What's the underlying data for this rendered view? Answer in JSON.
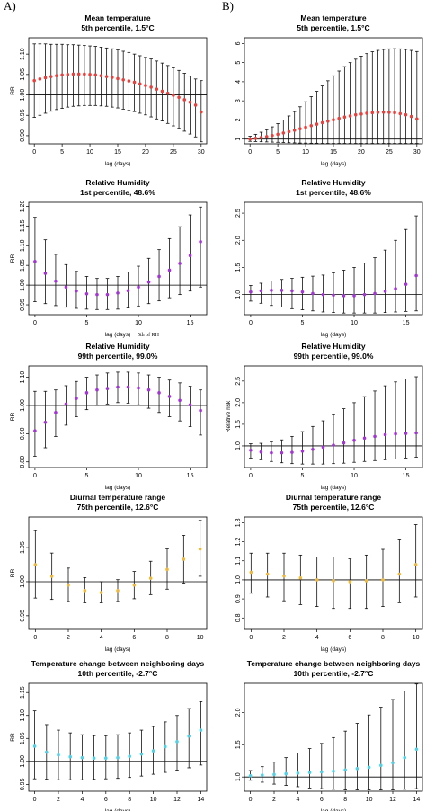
{
  "panel_labels": [
    "A)",
    "B)"
  ],
  "chart_data": [
    {
      "type": "scatter",
      "title": "Mean temperature",
      "subtitle": "5th percentile, 1.5°C",
      "xlabel": "lag (days)",
      "ylabel": "RR",
      "xlim": [
        -1,
        31
      ],
      "ylim": [
        0.88,
        1.14
      ],
      "xticks": [
        0,
        5,
        10,
        15,
        20,
        25,
        30
      ],
      "yticks": [
        0.9,
        0.95,
        1.0,
        1.05,
        1.1
      ],
      "ytick_labels": [
        "0.90",
        "0.95",
        "1.00",
        "1.05",
        "1.10"
      ],
      "reference_line": 1.0,
      "point_color": "#e8413d",
      "x": [
        0,
        1,
        2,
        3,
        4,
        5,
        6,
        7,
        8,
        9,
        10,
        11,
        12,
        13,
        14,
        15,
        16,
        17,
        18,
        19,
        20,
        21,
        22,
        23,
        24,
        25,
        26,
        27,
        28,
        29,
        30
      ],
      "y": [
        1.035,
        1.039,
        1.042,
        1.045,
        1.047,
        1.049,
        1.05,
        1.051,
        1.051,
        1.051,
        1.05,
        1.049,
        1.047,
        1.045,
        1.043,
        1.04,
        1.037,
        1.034,
        1.031,
        1.027,
        1.023,
        1.019,
        1.014,
        1.009,
        1.004,
        0.999,
        0.994,
        0.988,
        0.982,
        0.975,
        0.958
      ],
      "lower": [
        0.945,
        0.95,
        0.955,
        0.96,
        0.964,
        0.967,
        0.97,
        0.972,
        0.973,
        0.974,
        0.974,
        0.974,
        0.973,
        0.972,
        0.97,
        0.968,
        0.965,
        0.962,
        0.959,
        0.955,
        0.951,
        0.946,
        0.941,
        0.936,
        0.93,
        0.924,
        0.918,
        0.911,
        0.904,
        0.897,
        0.885
      ],
      "upper": [
        1.125,
        1.125,
        1.125,
        1.124,
        1.124,
        1.124,
        1.123,
        1.123,
        1.122,
        1.121,
        1.12,
        1.119,
        1.117,
        1.115,
        1.113,
        1.11,
        1.107,
        1.104,
        1.1,
        1.096,
        1.092,
        1.088,
        1.083,
        1.078,
        1.072,
        1.066,
        1.06,
        1.053,
        1.046,
        1.039,
        1.035
      ]
    },
    {
      "type": "scatter",
      "title": "Mean temperature",
      "subtitle": "5th percentile, 1.5°C",
      "xlabel": "lag (days)",
      "ylabel": "",
      "xlim": [
        -1,
        31
      ],
      "ylim": [
        0.75,
        6.3
      ],
      "xticks": [
        0,
        5,
        10,
        15,
        20,
        25,
        30
      ],
      "yticks": [
        1,
        2,
        3,
        4,
        5,
        6
      ],
      "ytick_labels": [
        "1",
        "2",
        "3",
        "4",
        "5",
        "6"
      ],
      "reference_line": 1.0,
      "point_color": "#e8413d",
      "x": [
        0,
        1,
        2,
        3,
        4,
        5,
        6,
        7,
        8,
        9,
        10,
        11,
        12,
        13,
        14,
        15,
        16,
        17,
        18,
        19,
        20,
        21,
        22,
        23,
        24,
        25,
        26,
        27,
        28,
        29,
        30
      ],
      "y": [
        1.0,
        1.04,
        1.08,
        1.13,
        1.19,
        1.25,
        1.32,
        1.39,
        1.46,
        1.54,
        1.62,
        1.7,
        1.78,
        1.86,
        1.94,
        2.01,
        2.08,
        2.15,
        2.21,
        2.27,
        2.31,
        2.35,
        2.38,
        2.4,
        2.41,
        2.4,
        2.38,
        2.33,
        2.27,
        2.18,
        2.05
      ],
      "lower": [
        0.88,
        0.87,
        0.86,
        0.85,
        0.84,
        0.83,
        0.82,
        0.81,
        0.8,
        0.79,
        0.79,
        0.78,
        0.78,
        0.77,
        0.77,
        0.77,
        0.77,
        0.77,
        0.77,
        0.77,
        0.77,
        0.77,
        0.77,
        0.77,
        0.77,
        0.77,
        0.77,
        0.77,
        0.77,
        0.77,
        0.77
      ],
      "upper": [
        1.15,
        1.25,
        1.36,
        1.49,
        1.64,
        1.81,
        2.0,
        2.21,
        2.44,
        2.69,
        2.95,
        3.22,
        3.5,
        3.78,
        4.05,
        4.31,
        4.56,
        4.79,
        5.0,
        5.18,
        5.34,
        5.47,
        5.57,
        5.64,
        5.69,
        5.72,
        5.73,
        5.72,
        5.69,
        5.64,
        5.58
      ]
    },
    {
      "type": "scatter",
      "title": "Relative Humidity",
      "subtitle": "1st percentile, 48.6%",
      "xlabel": "lag (days)",
      "ylabel": "RR",
      "annotation": "5th of RH",
      "xlim": [
        -0.6,
        16.6
      ],
      "ylim": [
        0.925,
        1.21
      ],
      "xticks": [
        0,
        5,
        10,
        15
      ],
      "yticks": [
        0.95,
        1.0,
        1.05,
        1.1,
        1.15,
        1.2
      ],
      "ytick_labels": [
        "0.95",
        "1.00",
        "1.05",
        "1.10",
        "1.15",
        "1.20"
      ],
      "reference_line": 1.0,
      "point_color": "#a335d6",
      "x": [
        0,
        1,
        2,
        3,
        4,
        5,
        6,
        7,
        8,
        9,
        10,
        11,
        12,
        13,
        14,
        15,
        16
      ],
      "y": [
        1.06,
        1.03,
        1.01,
        0.995,
        0.985,
        0.978,
        0.976,
        0.976,
        0.98,
        0.986,
        0.995,
        1.008,
        1.022,
        1.038,
        1.055,
        1.075,
        1.11
      ],
      "lower": [
        0.958,
        0.953,
        0.948,
        0.944,
        0.941,
        0.939,
        0.938,
        0.938,
        0.939,
        0.942,
        0.947,
        0.953,
        0.96,
        0.968,
        0.976,
        0.985,
        0.995
      ],
      "upper": [
        1.172,
        1.115,
        1.078,
        1.052,
        1.035,
        1.022,
        1.017,
        1.017,
        1.022,
        1.033,
        1.048,
        1.068,
        1.09,
        1.118,
        1.148,
        1.178,
        1.198
      ]
    },
    {
      "type": "scatter",
      "title": "Relative Humidity",
      "subtitle": "1st percentile, 48.6%",
      "xlabel": "lag (days)",
      "ylabel": "",
      "xlim": [
        -0.6,
        16.6
      ],
      "ylim": [
        0.63,
        2.7
      ],
      "xticks": [
        0,
        5,
        10,
        15
      ],
      "yticks": [
        1.0,
        1.5,
        2.0,
        2.5
      ],
      "ytick_labels": [
        "1.0",
        "1.5",
        "2.0",
        "2.5"
      ],
      "reference_line": 1.0,
      "point_color": "#a335d6",
      "x": [
        0,
        1,
        2,
        3,
        4,
        5,
        6,
        7,
        8,
        9,
        10,
        11,
        12,
        13,
        14,
        15,
        16
      ],
      "y": [
        1.05,
        1.07,
        1.08,
        1.08,
        1.07,
        1.05,
        1.02,
        1.0,
        0.99,
        0.98,
        0.98,
        1.0,
        1.02,
        1.06,
        1.11,
        1.19,
        1.35
      ],
      "lower": [
        0.88,
        0.84,
        0.8,
        0.77,
        0.74,
        0.72,
        0.7,
        0.68,
        0.67,
        0.66,
        0.66,
        0.66,
        0.66,
        0.67,
        0.68,
        0.69,
        0.7
      ],
      "upper": [
        1.17,
        1.21,
        1.25,
        1.28,
        1.3,
        1.32,
        1.34,
        1.36,
        1.4,
        1.45,
        1.5,
        1.58,
        1.68,
        1.82,
        2.0,
        2.2,
        2.45
      ]
    },
    {
      "type": "scatter",
      "title": "Relative Humidity",
      "subtitle": "99th percentile, 99.0%",
      "xlabel": "lag (days)",
      "ylabel": "RR",
      "xlim": [
        -0.6,
        16.6
      ],
      "ylim": [
        0.78,
        1.14
      ],
      "xticks": [
        0,
        5,
        10,
        15
      ],
      "yticks": [
        0.8,
        0.9,
        1.0,
        1.1
      ],
      "ytick_labels": [
        "0.80",
        "0.90",
        "1.00",
        "1.10"
      ],
      "reference_line": 1.0,
      "point_color": "#a335d6",
      "x": [
        0,
        1,
        2,
        3,
        4,
        5,
        6,
        7,
        8,
        9,
        10,
        11,
        12,
        13,
        14,
        15,
        16
      ],
      "y": [
        0.91,
        0.94,
        0.975,
        1.005,
        1.025,
        1.045,
        1.055,
        1.06,
        1.065,
        1.065,
        1.062,
        1.055,
        1.045,
        1.032,
        1.018,
        1.002,
        0.982
      ],
      "lower": [
        0.82,
        0.85,
        0.89,
        0.93,
        0.96,
        0.985,
        1.0,
        1.005,
        1.01,
        1.008,
        1.002,
        0.99,
        0.975,
        0.96,
        0.945,
        0.925,
        0.895
      ],
      "upper": [
        1.05,
        1.05,
        1.055,
        1.07,
        1.085,
        1.1,
        1.108,
        1.115,
        1.118,
        1.118,
        1.115,
        1.108,
        1.1,
        1.09,
        1.08,
        1.068,
        1.055
      ]
    },
    {
      "type": "scatter",
      "title": "Relative Humidity",
      "subtitle": "99th percentile, 99.0%",
      "xlabel": "lag (days)",
      "ylabel": "Relative risk",
      "xlim": [
        -0.6,
        16.6
      ],
      "ylim": [
        0.5,
        2.85
      ],
      "xticks": [
        0,
        5,
        10,
        15
      ],
      "yticks": [
        1.0,
        1.5,
        2.0,
        2.5
      ],
      "ytick_labels": [
        "1.0",
        "1.5",
        "2.0",
        "2.5"
      ],
      "reference_line": 1.0,
      "point_color": "#a335d6",
      "x": [
        0,
        1,
        2,
        3,
        4,
        5,
        6,
        7,
        8,
        9,
        10,
        11,
        12,
        13,
        14,
        15,
        16
      ],
      "y": [
        0.9,
        0.86,
        0.84,
        0.84,
        0.85,
        0.88,
        0.92,
        0.97,
        1.02,
        1.07,
        1.13,
        1.18,
        1.22,
        1.26,
        1.28,
        1.29,
        1.3
      ],
      "lower": [
        0.72,
        0.68,
        0.64,
        0.61,
        0.59,
        0.58,
        0.58,
        0.58,
        0.59,
        0.6,
        0.62,
        0.64,
        0.66,
        0.68,
        0.7,
        0.72,
        0.74
      ],
      "upper": [
        1.05,
        1.06,
        1.09,
        1.14,
        1.22,
        1.33,
        1.45,
        1.58,
        1.72,
        1.86,
        2.0,
        2.14,
        2.27,
        2.39,
        2.48,
        2.55,
        2.6
      ]
    },
    {
      "type": "scatter",
      "title": "Diurnal temperature range",
      "subtitle": "75th percentile, 12.6°C",
      "xlabel": "lag (days)",
      "ylabel": "RR",
      "xlim": [
        -0.4,
        10.4
      ],
      "ylim": [
        0.93,
        1.095
      ],
      "xticks": [
        0,
        2,
        4,
        6,
        8,
        10
      ],
      "yticks": [
        0.95,
        1.0,
        1.05
      ],
      "ytick_labels": [
        "0.95",
        "1.00",
        "1.05"
      ],
      "reference_line": 1.0,
      "point_color": "#f0b93a",
      "x": [
        0,
        1,
        2,
        3,
        4,
        5,
        6,
        7,
        8,
        9,
        10
      ],
      "y": [
        1.025,
        1.008,
        0.995,
        0.987,
        0.984,
        0.987,
        0.995,
        1.005,
        1.018,
        1.033,
        1.048
      ],
      "lower": [
        0.976,
        0.974,
        0.971,
        0.969,
        0.969,
        0.971,
        0.975,
        0.981,
        0.989,
        0.998,
        1.008
      ],
      "upper": [
        1.075,
        1.042,
        1.02,
        1.006,
        1.0,
        1.003,
        1.015,
        1.03,
        1.048,
        1.068,
        1.09
      ]
    },
    {
      "type": "scatter",
      "title": "Diurnal temperature range",
      "subtitle": "75th percentile, 12.6°C",
      "xlabel": "lag (days)",
      "ylabel": "",
      "xlim": [
        -0.4,
        10.4
      ],
      "ylim": [
        0.74,
        1.33
      ],
      "xticks": [
        0,
        2,
        4,
        6,
        8,
        10
      ],
      "yticks": [
        0.8,
        0.9,
        1.0,
        1.1,
        1.2,
        1.3
      ],
      "ytick_labels": [
        "0.8",
        "0.9",
        "1.0",
        "1.1",
        "1.2",
        "1.3"
      ],
      "reference_line": 1.0,
      "point_color": "#f0b93a",
      "x": [
        0,
        1,
        2,
        3,
        4,
        5,
        6,
        7,
        8,
        9,
        10
      ],
      "y": [
        1.04,
        1.03,
        1.02,
        1.01,
        1.0,
        0.995,
        0.99,
        0.995,
        1.0,
        1.03,
        1.08
      ],
      "lower": [
        0.93,
        0.91,
        0.89,
        0.87,
        0.86,
        0.85,
        0.85,
        0.85,
        0.86,
        0.88,
        0.91
      ],
      "upper": [
        1.14,
        1.14,
        1.14,
        1.13,
        1.12,
        1.12,
        1.11,
        1.13,
        1.16,
        1.21,
        1.29
      ]
    },
    {
      "type": "scatter",
      "title": "Temperature change between neighboring days",
      "subtitle": "10th percentile, -2.7°C",
      "xlabel": "lag (days)",
      "ylabel": "RR",
      "xlim": [
        -0.5,
        14.5
      ],
      "ylim": [
        0.935,
        1.17
      ],
      "xticks": [
        0,
        2,
        4,
        6,
        8,
        10,
        12,
        14
      ],
      "yticks": [
        0.95,
        1.0,
        1.05,
        1.1,
        1.15
      ],
      "ytick_labels": [
        "0.95",
        "1.00",
        "1.05",
        "1.10",
        "1.15"
      ],
      "reference_line": 1.0,
      "point_color": "#4fd2e6",
      "x": [
        0,
        1,
        2,
        3,
        4,
        5,
        6,
        7,
        8,
        9,
        10,
        11,
        12,
        13,
        14
      ],
      "y": [
        1.033,
        1.02,
        1.014,
        1.01,
        1.008,
        1.007,
        1.007,
        1.008,
        1.011,
        1.016,
        1.023,
        1.032,
        1.043,
        1.055,
        1.068
      ],
      "lower": [
        0.962,
        0.961,
        0.96,
        0.96,
        0.96,
        0.961,
        0.962,
        0.963,
        0.965,
        0.968,
        0.972,
        0.976,
        0.981,
        0.986,
        0.992
      ],
      "upper": [
        1.11,
        1.08,
        1.068,
        1.062,
        1.058,
        1.056,
        1.056,
        1.058,
        1.062,
        1.068,
        1.076,
        1.086,
        1.1,
        1.115,
        1.13
      ]
    },
    {
      "type": "scatter",
      "title": "Temperature change between neighboring days",
      "subtitle": "10th percentile, -2.7°C",
      "xlabel": "lag (days)",
      "ylabel": "",
      "xlim": [
        -0.5,
        14.5
      ],
      "ylim": [
        0.78,
        2.45
      ],
      "xticks": [
        0,
        2,
        4,
        6,
        8,
        10,
        12,
        14
      ],
      "yticks": [
        1.0,
        1.5,
        2.0
      ],
      "ytick_labels": [
        "1.0",
        "1.5",
        "2.0"
      ],
      "reference_line": 1.0,
      "point_color": "#4fd2e6",
      "x": [
        0,
        1,
        2,
        3,
        4,
        5,
        6,
        7,
        8,
        9,
        10,
        11,
        12,
        13,
        14
      ],
      "y": [
        1.02,
        1.03,
        1.04,
        1.05,
        1.06,
        1.07,
        1.08,
        1.09,
        1.11,
        1.13,
        1.15,
        1.18,
        1.22,
        1.3,
        1.43
      ],
      "lower": [
        0.95,
        0.92,
        0.89,
        0.87,
        0.85,
        0.83,
        0.82,
        0.81,
        0.8,
        0.8,
        0.8,
        0.8,
        0.8,
        0.81,
        0.82
      ],
      "upper": [
        1.1,
        1.16,
        1.23,
        1.3,
        1.37,
        1.44,
        1.52,
        1.61,
        1.71,
        1.83,
        1.96,
        2.08,
        2.2,
        2.33,
        2.44
      ]
    }
  ]
}
